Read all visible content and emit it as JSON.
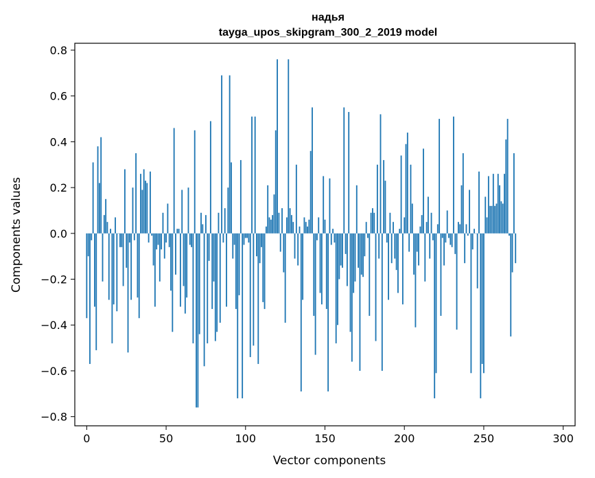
{
  "chart_data": {
    "type": "bar",
    "title_line1": "надья",
    "title_line2": "tayga_upos_skipgram_300_2_2019 model",
    "xlabel": "Vector components",
    "ylabel": "Components values",
    "xlim": [
      -7.5,
      307.5
    ],
    "ylim": [
      -0.84,
      0.83
    ],
    "xticks": [
      0,
      50,
      100,
      150,
      200,
      250,
      300
    ],
    "xtick_labels": [
      "0",
      "50",
      "100",
      "150",
      "200",
      "250",
      "300"
    ],
    "yticks": [
      0.8,
      0.6,
      0.4,
      0.2,
      0.0,
      -0.2,
      -0.4,
      -0.6,
      -0.8
    ],
    "ytick_labels": [
      "0.8",
      "0.6",
      "0.4",
      "0.2",
      "0.0",
      "−0.2",
      "−0.4",
      "−0.6",
      "−0.8"
    ],
    "bar_color": "#1f77b4",
    "values": [
      -0.37,
      -0.1,
      -0.57,
      -0.03,
      0.31,
      -0.32,
      -0.51,
      0.38,
      0.22,
      0.42,
      -0.21,
      0.08,
      0.15,
      0.05,
      -0.29,
      0.02,
      -0.48,
      -0.31,
      0.07,
      -0.34,
      0.0,
      -0.06,
      -0.06,
      -0.23,
      0.28,
      -0.15,
      -0.52,
      -0.04,
      -0.29,
      0.2,
      -0.03,
      0.35,
      -0.28,
      -0.37,
      0.26,
      0.19,
      0.28,
      0.23,
      0.22,
      -0.04,
      0.27,
      -0.01,
      -0.14,
      -0.32,
      -0.07,
      -0.05,
      -0.21,
      -0.07,
      0.09,
      -0.11,
      -0.04,
      0.13,
      -0.06,
      -0.25,
      -0.43,
      0.46,
      -0.18,
      0.02,
      0.02,
      -0.32,
      0.19,
      -0.23,
      -0.35,
      -0.28,
      0.2,
      -0.05,
      -0.06,
      -0.48,
      0.45,
      -0.76,
      0.18,
      -0.44,
      0.09,
      0.04,
      -0.58,
      0.08,
      -0.48,
      -0.12,
      0.49,
      -0.33,
      -0.21,
      -0.47,
      -0.43,
      0.09,
      -0.39,
      0.69,
      -0.04,
      0.11,
      -0.32,
      0.2,
      -0.17,
      0.31,
      -0.11,
      -0.05,
      -0.33,
      -0.72,
      -0.27,
      0.32,
      0.36,
      -0.05,
      -0.02,
      -0.02,
      -0.04,
      -0.54,
      0.51,
      -0.49,
      -0.43,
      -0.1,
      -0.57,
      -0.13,
      -0.06,
      -0.3,
      -0.33,
      0.03,
      0.21,
      0.07,
      0.06,
      0.08,
      0.17,
      0.45,
      0.76,
      0.09,
      -0.08,
      0.11,
      -0.17,
      -0.39,
      0.07,
      -0.27,
      0.11,
      0.08,
      0.05,
      -0.11,
      0.3,
      -0.14,
      0.03,
      -0.69,
      -0.29,
      0.07,
      0.05,
      0.03,
      0.06,
      0.36,
      0.55,
      -0.36,
      -0.53,
      -0.03,
      0.07,
      -0.26,
      -0.31,
      0.25,
      0.06,
      -0.33,
      -0.53,
      0.24,
      -0.05,
      0.02,
      -0.04,
      -0.48,
      -0.4,
      -0.2,
      -0.14,
      -0.15,
      0.33,
      -0.09,
      -0.23,
      0.53,
      -0.43,
      -0.56,
      -0.26,
      -0.21,
      0.21,
      -0.15,
      -0.6,
      -0.18,
      -0.19,
      -0.1,
      0.05,
      -0.02,
      -0.36,
      0.09,
      0.11,
      0.09,
      -0.47,
      0.3,
      -0.11,
      0.25,
      -0.05,
      0.32,
      0.23,
      -0.04,
      -0.29,
      0.09,
      -0.13,
      0.05,
      -0.11,
      -0.16,
      -0.26,
      0.02,
      0.34,
      -0.31,
      0.07,
      0.39,
      0.44,
      -0.08,
      0.3,
      0.13,
      -0.18,
      -0.41,
      -0.08,
      -0.14,
      0.03,
      0.08,
      0.37,
      -0.21,
      0.05,
      0.16,
      -0.11,
      0.09,
      -0.03,
      -0.72,
      -0.61,
      0.04,
      0.5,
      -0.36,
      -0.02,
      -0.14,
      -0.04,
      0.1,
      -0.02,
      -0.05,
      -0.06,
      0.51,
      -0.09,
      -0.42,
      0.05,
      0.04,
      0.21,
      0.35,
      -0.13,
      0.04,
      -0.01,
      0.19,
      -0.61,
      -0.07,
      0.02,
      0.0,
      -0.24,
      0.27,
      0.21,
      -0.57,
      -0.49,
      0.16,
      0.07,
      0.25,
      0.12,
      0.12,
      0.26,
      0.12,
      0.13,
      0.26,
      0.21,
      0.14,
      0.13,
      0.26,
      0.41,
      -0.03,
      -0.01,
      -0.45,
      -0.17,
      0.35,
      -0.13
    ],
    "highlight_values": {
      "0": -0.37,
      "2": -0.57,
      "7": 0.38,
      "9": 0.42,
      "70": -0.76,
      "90": 0.69,
      "98": -0.72,
      "106": 0.51,
      "127": 0.76,
      "152": -0.69,
      "162": 0.55,
      "185": 0.52,
      "186": -0.6,
      "248": -0.72,
      "250": -0.61,
      "265": 0.5,
      "281": -0.55,
      "298": 0.35
    }
  }
}
